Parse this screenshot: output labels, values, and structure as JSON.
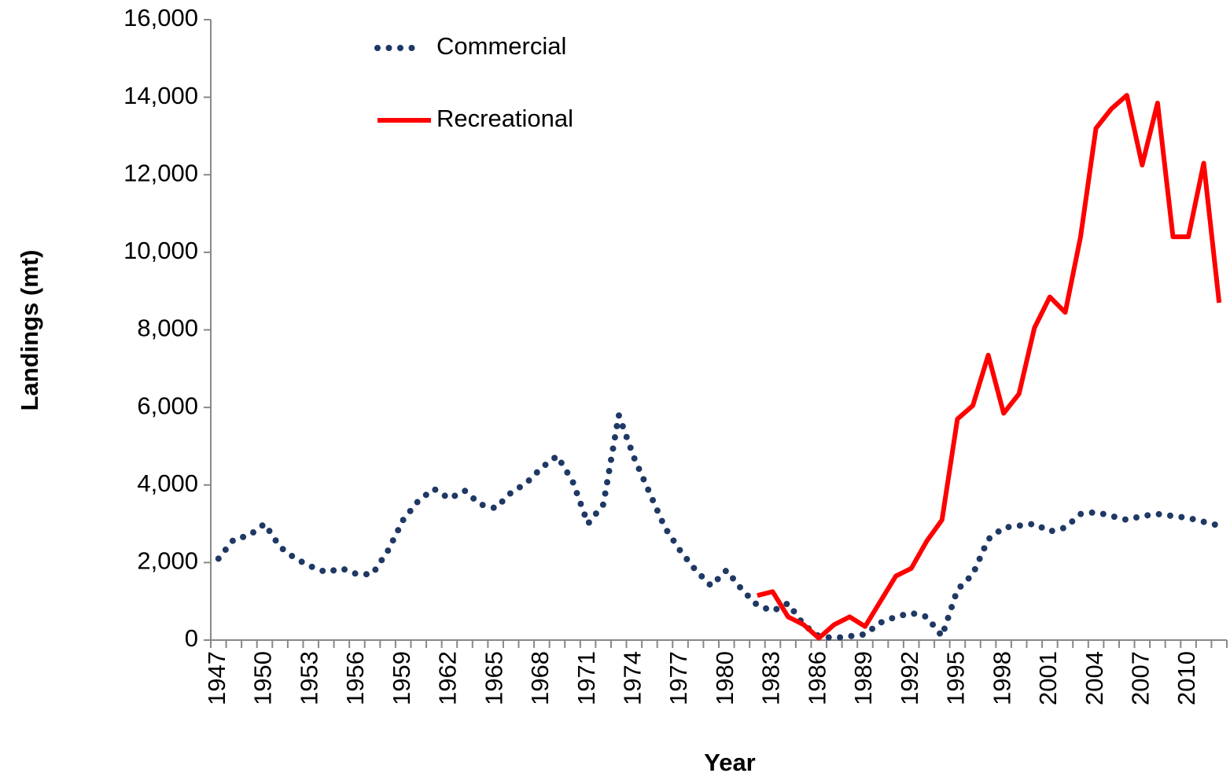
{
  "chart_data": {
    "type": "line",
    "x_label": "Year",
    "y_label": "Landings (mt)",
    "categories": [
      "1947",
      null,
      null,
      "1950",
      null,
      null,
      "1953",
      null,
      null,
      "1956",
      null,
      null,
      "1959",
      null,
      null,
      "1962",
      null,
      null,
      "1965",
      null,
      null,
      "1968",
      null,
      null,
      "1971",
      null,
      null,
      "1974",
      null,
      null,
      "1977",
      null,
      null,
      "1980",
      null,
      null,
      "1983",
      null,
      null,
      "1986",
      null,
      null,
      "1989",
      null,
      null,
      "1992",
      null,
      null,
      "1995",
      null,
      null,
      "1998",
      null,
      null,
      "2001",
      null,
      null,
      "2004",
      null,
      null,
      "2007",
      null,
      null,
      "2010",
      null,
      null
    ],
    "series": [
      {
        "name": "Commercial",
        "color": "#1f3864",
        "style": "dotted",
        "values": [
          2100,
          2600,
          2700,
          3000,
          2400,
          2100,
          1900,
          1750,
          1850,
          1700,
          1700,
          2300,
          3100,
          3600,
          3900,
          3650,
          3850,
          3500,
          3400,
          3800,
          4050,
          4450,
          4750,
          4100,
          3000,
          3500,
          5800,
          4700,
          3800,
          2900,
          2300,
          1800,
          1400,
          1800,
          1300,
          900,
          750,
          950,
          400,
          100,
          50,
          100,
          150,
          450,
          600,
          700,
          600,
          100,
          1300,
          1700,
          2600,
          2900,
          2950,
          3000,
          2800,
          2900,
          3250,
          3300,
          3200,
          3100,
          3200,
          3250,
          3200,
          3150,
          3050,
          2950
        ]
      },
      {
        "name": "Recreational",
        "color": "#ff0000",
        "style": "solid",
        "values": [
          null,
          null,
          null,
          null,
          null,
          null,
          null,
          null,
          null,
          null,
          null,
          null,
          null,
          null,
          null,
          null,
          null,
          null,
          null,
          null,
          null,
          null,
          null,
          null,
          null,
          null,
          null,
          null,
          null,
          null,
          null,
          null,
          null,
          null,
          null,
          1150,
          1250,
          600,
          400,
          50,
          400,
          600,
          350,
          1000,
          1650,
          1850,
          2550,
          3100,
          5700,
          6050,
          7350,
          5850,
          6350,
          8050,
          8850,
          8450,
          10400,
          13200,
          13700,
          14050,
          12250,
          13850,
          10400,
          10400,
          12300,
          8700
        ]
      }
    ],
    "ylim": [
      0,
      16000
    ],
    "yticks": [
      0,
      {
        "value": 2000,
        "label": "2,000"
      },
      {
        "value": 4000,
        "label": "4,000"
      },
      {
        "value": 6000,
        "label": "6,000"
      },
      {
        "value": 8000,
        "label": "8,000"
      },
      {
        "value": 10000,
        "label": "10,000"
      },
      {
        "value": 12000,
        "label": "12,000"
      },
      {
        "value": 14000,
        "label": "14,000"
      },
      {
        "value": 16000,
        "label": "16,000"
      }
    ],
    "legend": "upper left",
    "grid": false
  }
}
